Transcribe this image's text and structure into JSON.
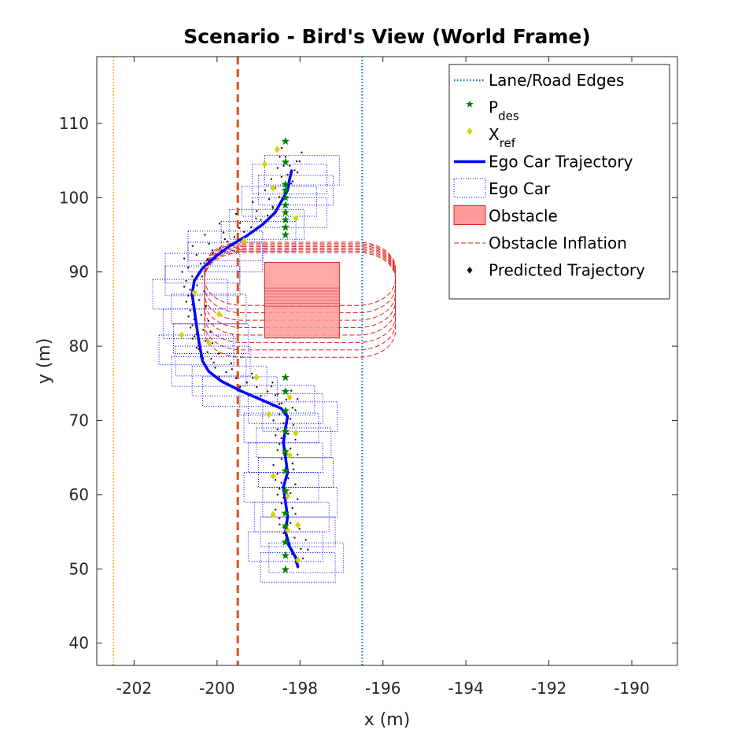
{
  "chart_data": {
    "type": "scatter",
    "title": "Scenario - Bird's View (World Frame)",
    "xlabel": "x (m)",
    "ylabel": "y (m)",
    "xlim": [
      -202.9,
      -188.9
    ],
    "ylim": [
      37,
      119
    ],
    "xticks": [
      -202,
      -200,
      -198,
      -196,
      -194,
      -192,
      -190
    ],
    "yticks": [
      40,
      50,
      60,
      70,
      80,
      90,
      100,
      110
    ],
    "grid": false,
    "legend_position": "top-right",
    "colors": {
      "lane_edge_left": "#edb120",
      "lane_center": "#d95319",
      "lane_edge_right": "#0072bd",
      "p_des": "#008000",
      "x_ref": "#d4d400",
      "ego_trajectory": "#0000ff",
      "ego_car": "#0000ff",
      "obstacle_fill": "#ff9999",
      "obstacle_edge": "#d62728",
      "inflation": "#e02020",
      "predicted": "#2b0a2b"
    },
    "legend": [
      {
        "key": "lane",
        "label": "Lane/Road Edges",
        "sub": ""
      },
      {
        "key": "pdes",
        "label": "P",
        "sub": "des"
      },
      {
        "key": "xref",
        "label": "X",
        "sub": "ref"
      },
      {
        "key": "ego_traj",
        "label": "Ego Car Trajectory",
        "sub": ""
      },
      {
        "key": "ego_car",
        "label": "Ego Car",
        "sub": ""
      },
      {
        "key": "obstacle",
        "label": "Obstacle",
        "sub": ""
      },
      {
        "key": "inflation",
        "label": "Obstacle Inflation",
        "sub": ""
      },
      {
        "key": "predicted",
        "label": "Predicted Trajectory",
        "sub": ""
      }
    ],
    "lane_lines": [
      {
        "name": "left-edge",
        "x": -202.5,
        "style": "dotted",
        "color_key": "lane_edge_left"
      },
      {
        "name": "center",
        "x": -199.5,
        "style": "dashed",
        "color_key": "lane_center"
      },
      {
        "name": "right-edge",
        "x": -196.5,
        "style": "dotted",
        "color_key": "lane_edge_right"
      }
    ],
    "obstacle": {
      "x": [
        -198.85,
        -197.05
      ],
      "y": [
        81.1,
        91.3
      ]
    },
    "inflation": {
      "x": [
        -200.3,
        -195.7
      ],
      "y": [
        78.5,
        94
      ],
      "radius_x": 0.9,
      "radius_y": 3.5,
      "count": 8,
      "shrink_y": 1.0
    },
    "ego_trajectory": [
      [
        -198.05,
        50.2
      ],
      [
        -198.1,
        51.5
      ],
      [
        -198.25,
        53
      ],
      [
        -198.35,
        55
      ],
      [
        -198.3,
        57
      ],
      [
        -198.35,
        59
      ],
      [
        -198.4,
        61
      ],
      [
        -198.3,
        63
      ],
      [
        -198.35,
        65
      ],
      [
        -198.4,
        67
      ],
      [
        -198.35,
        69
      ],
      [
        -198.3,
        70.5
      ],
      [
        -198.45,
        71.6
      ],
      [
        -198.9,
        72.7
      ],
      [
        -199.4,
        73.9
      ],
      [
        -199.9,
        75.3
      ],
      [
        -200.2,
        76.6
      ],
      [
        -200.35,
        78
      ],
      [
        -200.4,
        79.5
      ],
      [
        -200.45,
        81
      ],
      [
        -200.5,
        83
      ],
      [
        -200.55,
        85
      ],
      [
        -200.6,
        87
      ],
      [
        -200.55,
        88.8
      ],
      [
        -200.35,
        90.5
      ],
      [
        -200.05,
        92
      ],
      [
        -199.7,
        93.5
      ],
      [
        -199.3,
        94.8
      ],
      [
        -198.9,
        96.4
      ],
      [
        -198.6,
        98
      ],
      [
        -198.45,
        99.5
      ],
      [
        -198.3,
        101
      ],
      [
        -198.25,
        102.5
      ],
      [
        -198.2,
        103.7
      ]
    ],
    "p_des": [
      [
        -198.35,
        49.9
      ],
      [
        -198.35,
        51.8
      ],
      [
        -198.35,
        53.6
      ],
      [
        -198.35,
        55.8
      ],
      [
        -198.35,
        57.5
      ],
      [
        -198.35,
        60.5
      ],
      [
        -198.35,
        63.2
      ],
      [
        -198.35,
        65.8
      ],
      [
        -198.35,
        68.5
      ],
      [
        -198.35,
        71.3
      ],
      [
        -198.35,
        73.9
      ],
      [
        -198.35,
        75.8
      ],
      [
        -198.35,
        95
      ],
      [
        -198.35,
        96
      ],
      [
        -198.35,
        97
      ],
      [
        -198.35,
        98
      ],
      [
        -198.35,
        99
      ],
      [
        -198.35,
        100
      ],
      [
        -198.35,
        101
      ],
      [
        -198.35,
        101.8
      ],
      [
        -198.35,
        104.8
      ],
      [
        -198.35,
        107.6
      ]
    ],
    "x_ref": [
      [
        -198.05,
        51.2
      ],
      [
        -198.3,
        55.2
      ],
      [
        -198.65,
        57.3
      ],
      [
        -198.05,
        55.9
      ],
      [
        -198.65,
        62.5
      ],
      [
        -198.3,
        59.8
      ],
      [
        -198.25,
        65.3
      ],
      [
        -198.1,
        68.3
      ],
      [
        -198.75,
        70.8
      ],
      [
        -198.25,
        73.1
      ],
      [
        -199.05,
        75.8
      ],
      [
        -200.2,
        80.5
      ],
      [
        -200.85,
        81.5
      ],
      [
        -199.95,
        84.3
      ],
      [
        -200.55,
        87.2
      ],
      [
        -199.35,
        94.2
      ],
      [
        -198.85,
        104.5
      ],
      [
        -198.65,
        101.3
      ],
      [
        -198.1,
        97.2
      ],
      [
        -198.55,
        106.5
      ]
    ],
    "ego_car_x": [
      -198.9,
      -197.1
    ],
    "ego_car_half_height": 2.0,
    "ego_car_jitter": [
      -0.3,
      0.2,
      -0.5,
      0.3,
      -0.1,
      0.4,
      -0.4,
      0.1
    ],
    "predicted_y_step": 4.0
  }
}
